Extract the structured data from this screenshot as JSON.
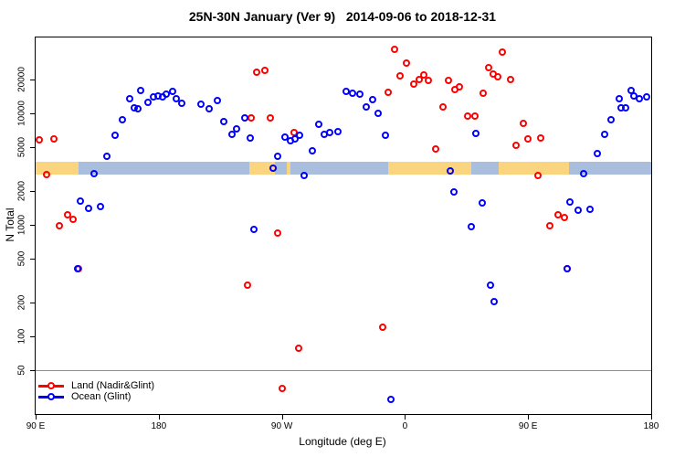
{
  "title": "25N-30N January (Ver 9)   2014-09-06 to 2018-12-31",
  "chart_data": {
    "type": "scatter",
    "title": "25N-30N January (Ver 9)   2014-09-06 to 2018-12-31",
    "xlabel": "Longitude (deg E)",
    "ylabel": "N Total",
    "grid": false,
    "legend_position": "bottom-left",
    "x_axis": {
      "note": "longitude continues eastward from 90E around the globe to 180",
      "range": [
        90,
        540
      ],
      "ticks": [
        90,
        180,
        270,
        360,
        450,
        540
      ],
      "tick_labels": [
        "90 E",
        "180",
        "90 W",
        "0",
        "90 E",
        "180"
      ]
    },
    "y_axis": {
      "scale": "log",
      "range": [
        20,
        48000
      ],
      "ticks": [
        50,
        100,
        200,
        500,
        1000,
        2000,
        5000,
        10000,
        20000
      ],
      "tick_labels": [
        "50",
        "100",
        "200",
        "500",
        "1000",
        "2000",
        "5000",
        "10000",
        "20000"
      ]
    },
    "threshold_line": {
      "y": 50,
      "color": "#909090"
    },
    "map_strip": {
      "colors": {
        "land": "#FBD47F",
        "ocean": "#A8BEDC"
      },
      "segments": [
        {
          "from": 90,
          "to": 121.5,
          "surface": "land"
        },
        {
          "from": 121.5,
          "to": 246.3,
          "surface": "ocean"
        },
        {
          "from": 246.3,
          "to": 265,
          "surface": "land"
        },
        {
          "from": 265,
          "to": 273.5,
          "surface": "ocean"
        },
        {
          "from": 273.5,
          "to": 276,
          "surface": "land"
        },
        {
          "from": 276,
          "to": 347.5,
          "surface": "ocean"
        },
        {
          "from": 347.5,
          "to": 408.5,
          "surface": "land"
        },
        {
          "from": 408.5,
          "to": 428.5,
          "surface": "ocean"
        },
        {
          "from": 428.5,
          "to": 480,
          "surface": "land"
        },
        {
          "from": 480,
          "to": 540,
          "surface": "ocean"
        }
      ]
    },
    "series": [
      {
        "name": "Land (Nadir&Glint)",
        "color": "#FF0000",
        "points": [
          [
            93.3,
            5700
          ],
          [
            103.4,
            5900
          ],
          [
            98.0,
            2800
          ],
          [
            107.4,
            980
          ],
          [
            113.4,
            1230
          ],
          [
            117.4,
            1120
          ],
          [
            121.4,
            400
          ],
          [
            251.6,
            23400
          ],
          [
            257.6,
            23900
          ],
          [
            248.2,
            9100
          ],
          [
            261.6,
            9100
          ],
          [
            279.0,
            6700
          ],
          [
            267.0,
            840
          ],
          [
            244.9,
            283
          ],
          [
            282.3,
            77
          ],
          [
            270.3,
            34
          ],
          [
            343.7,
            120
          ],
          [
            352.4,
            37000
          ],
          [
            361.1,
            28200
          ],
          [
            357.0,
            21300
          ],
          [
            366.4,
            18300
          ],
          [
            370.4,
            20100
          ],
          [
            373.8,
            22100
          ],
          [
            377.1,
            19400
          ],
          [
            391.8,
            19400
          ],
          [
            396.5,
            16300
          ],
          [
            399.8,
            17300
          ],
          [
            347.7,
            15400
          ],
          [
            387.8,
            11400
          ],
          [
            405.8,
            9400
          ],
          [
            411.2,
            9300
          ],
          [
            382.5,
            4790
          ],
          [
            431.2,
            34800
          ],
          [
            421.2,
            25700
          ],
          [
            424.5,
            22500
          ],
          [
            427.9,
            20900
          ],
          [
            437.2,
            20100
          ],
          [
            417.2,
            15100
          ],
          [
            446.5,
            8100
          ],
          [
            441.2,
            5100
          ],
          [
            449.9,
            5800
          ],
          [
            459.2,
            6000
          ],
          [
            457.2,
            2770
          ],
          [
            465.9,
            980
          ],
          [
            471.9,
            1230
          ],
          [
            476.6,
            1150
          ],
          [
            479.2,
            400
          ]
        ]
      },
      {
        "name": "Ocean (Glint)",
        "color": "#0000FF",
        "points": [
          [
            120.7,
            400
          ],
          [
            122.7,
            1630
          ],
          [
            128.7,
            1380
          ],
          [
            137.4,
            1440
          ],
          [
            132.7,
            2880
          ],
          [
            142.7,
            4120
          ],
          [
            148.1,
            6350
          ],
          [
            153.4,
            8770
          ],
          [
            158.8,
            13500
          ],
          [
            162.1,
            11200
          ],
          [
            164.8,
            11000
          ],
          [
            167.4,
            16000
          ],
          [
            172.1,
            12500
          ],
          [
            176.1,
            13900
          ],
          [
            179.5,
            14300
          ],
          [
            182.8,
            13800
          ],
          [
            185.5,
            14700
          ],
          [
            190.2,
            15700
          ],
          [
            192.8,
            13500
          ],
          [
            196.8,
            12300
          ],
          [
            210.9,
            11900
          ],
          [
            216.9,
            11000
          ],
          [
            222.9,
            12900
          ],
          [
            227.6,
            8400
          ],
          [
            233.6,
            6450
          ],
          [
            236.9,
            7250
          ],
          [
            242.9,
            9100
          ],
          [
            246.9,
            6000
          ],
          [
            250.2,
            910
          ],
          [
            263.6,
            3200
          ],
          [
            267.0,
            4050
          ],
          [
            272.9,
            6100
          ],
          [
            276.3,
            5650
          ],
          [
            279.6,
            5900
          ],
          [
            283.0,
            6350
          ],
          [
            286.3,
            2770
          ],
          [
            292.3,
            4600
          ],
          [
            297.0,
            7850
          ],
          [
            301.6,
            6450
          ],
          [
            305.6,
            6700
          ],
          [
            311.6,
            6800
          ],
          [
            317.0,
            15700
          ],
          [
            322.3,
            15100
          ],
          [
            327.0,
            14800
          ],
          [
            332.3,
            11400
          ],
          [
            336.4,
            13100
          ],
          [
            340.4,
            10000
          ],
          [
            345.7,
            6250
          ],
          [
            349.7,
            27
          ],
          [
            393.1,
            3040
          ],
          [
            395.8,
            1940
          ],
          [
            409.1,
            960
          ],
          [
            411.8,
            6600
          ],
          [
            416.5,
            1570
          ],
          [
            422.5,
            287
          ],
          [
            425.2,
            205
          ],
          [
            479.2,
            400
          ],
          [
            481.2,
            1600
          ],
          [
            487.2,
            1345
          ],
          [
            495.8,
            1370
          ],
          [
            491.2,
            2880
          ],
          [
            501.2,
            4290
          ],
          [
            506.5,
            6450
          ],
          [
            511.2,
            8770
          ],
          [
            517.2,
            13300
          ],
          [
            518.5,
            11200
          ],
          [
            521.8,
            11200
          ],
          [
            525.8,
            15900
          ],
          [
            527.8,
            14300
          ],
          [
            531.8,
            13300
          ],
          [
            537.2,
            14000
          ]
        ]
      }
    ]
  },
  "legend": {
    "items": [
      "Land (Nadir&Glint)",
      "Ocean (Glint)"
    ]
  }
}
